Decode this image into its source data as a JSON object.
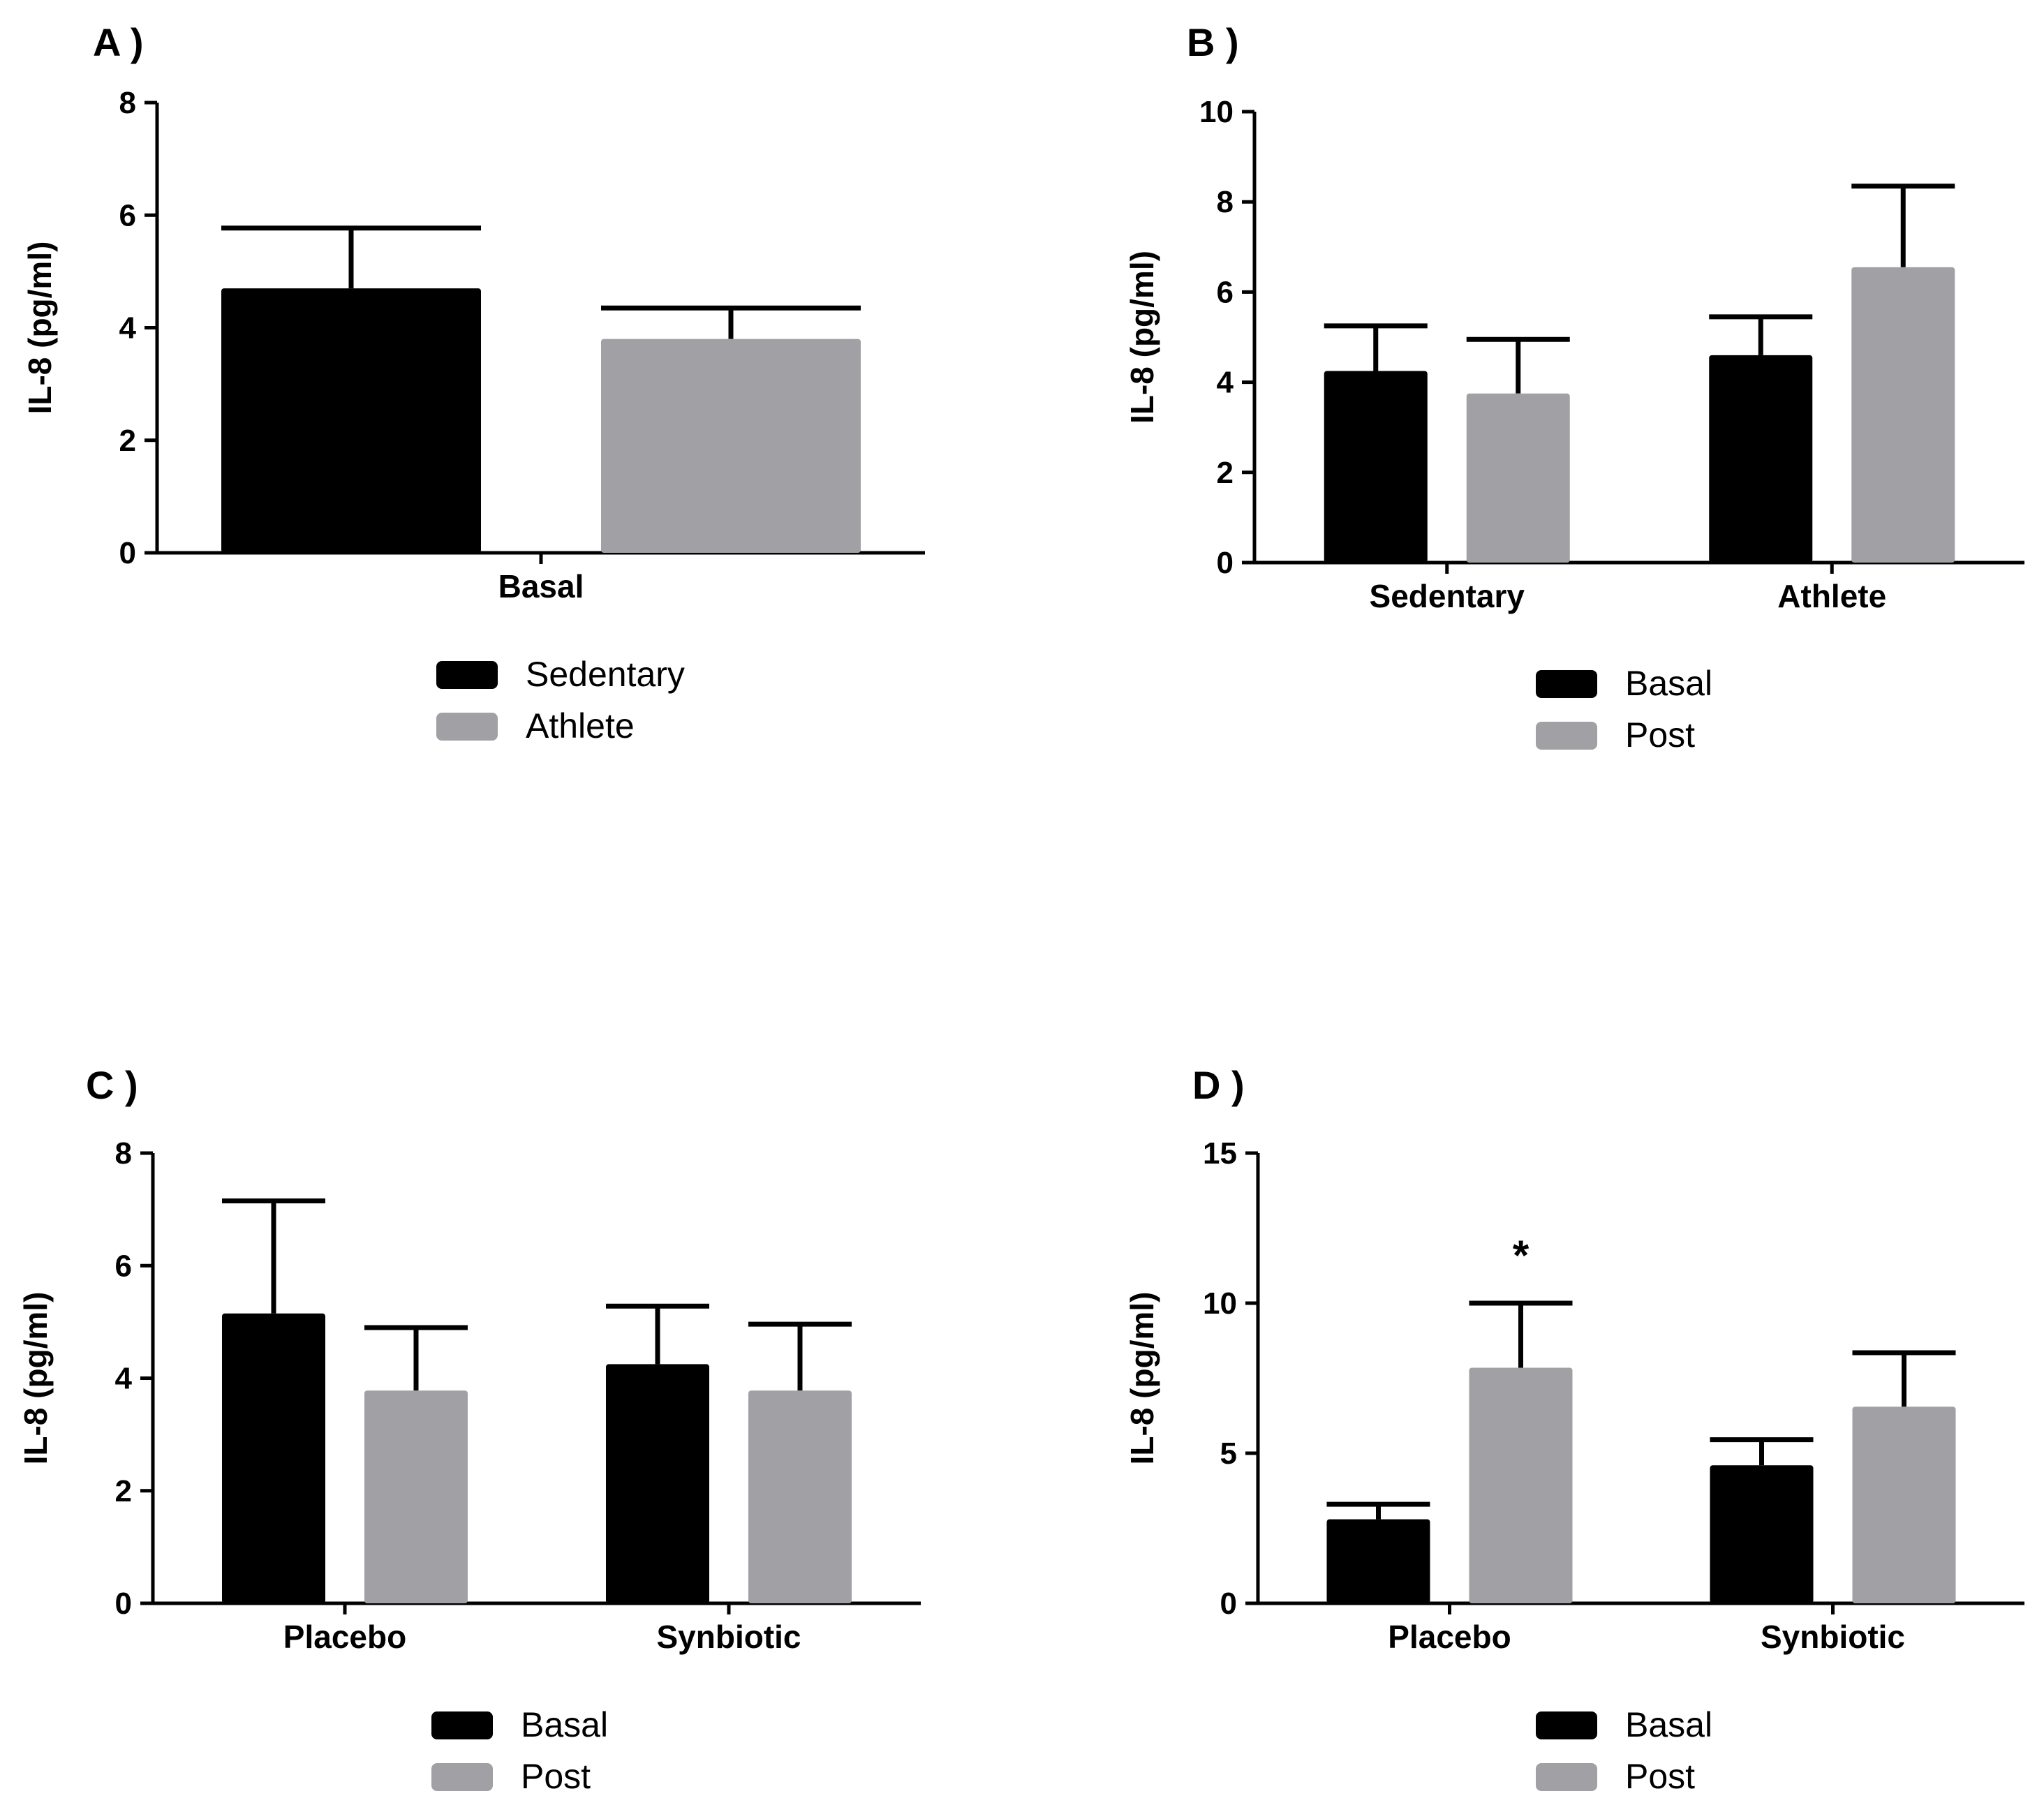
{
  "colors": {
    "basal": "#000000",
    "post": "#a1a1a5",
    "axis": "#000000"
  },
  "chart_data": [
    {
      "id": "A",
      "panel_label": "A )",
      "type": "bar",
      "ylabel": "IL-8 (pg/ml)",
      "ylim": [
        0,
        8
      ],
      "yticks": [
        0,
        2,
        4,
        6,
        8
      ],
      "categories": [
        "Basal"
      ],
      "series": [
        {
          "name": "Sedentary",
          "color_key": "basal",
          "values": [
            4.7
          ],
          "errors": [
            1.07
          ]
        },
        {
          "name": "Athlete",
          "color_key": "post",
          "values": [
            3.8
          ],
          "errors": [
            0.55
          ]
        }
      ],
      "significance": []
    },
    {
      "id": "B",
      "panel_label": "B )",
      "type": "bar",
      "ylabel": "IL-8 (pg/ml)",
      "ylim": [
        0,
        10
      ],
      "yticks": [
        0,
        2,
        4,
        6,
        8,
        10
      ],
      "categories": [
        "Sedentary",
        "Athlete"
      ],
      "series": [
        {
          "name": "Basal",
          "color_key": "basal",
          "values": [
            4.25,
            4.6
          ],
          "errors": [
            1.0,
            0.85
          ]
        },
        {
          "name": "Post",
          "color_key": "post",
          "values": [
            3.75,
            6.55
          ],
          "errors": [
            1.2,
            1.8
          ]
        }
      ],
      "significance": []
    },
    {
      "id": "C",
      "panel_label": "C )",
      "type": "bar",
      "ylabel": "IL-8 (pg/ml)",
      "ylim": [
        0,
        8
      ],
      "yticks": [
        0,
        2,
        4,
        6,
        8
      ],
      "categories": [
        "Placebo",
        "Synbiotic"
      ],
      "series": [
        {
          "name": "Basal",
          "color_key": "basal",
          "values": [
            5.15,
            4.25
          ],
          "errors": [
            2.0,
            1.03
          ]
        },
        {
          "name": "Post",
          "color_key": "post",
          "values": [
            3.78,
            3.78
          ],
          "errors": [
            1.12,
            1.18
          ]
        }
      ],
      "significance": []
    },
    {
      "id": "D",
      "panel_label": "D )",
      "type": "bar",
      "ylabel": "IL-8 (pg/ml)",
      "ylim": [
        0,
        15
      ],
      "yticks": [
        0,
        5,
        10,
        15
      ],
      "categories": [
        "Placebo",
        "Synbiotic"
      ],
      "series": [
        {
          "name": "Basal",
          "color_key": "basal",
          "values": [
            2.8,
            4.6
          ],
          "errors": [
            0.5,
            0.85
          ]
        },
        {
          "name": "Post",
          "color_key": "post",
          "values": [
            7.85,
            6.55
          ],
          "errors": [
            2.15,
            1.8
          ]
        }
      ],
      "significance": [
        {
          "category": 0,
          "series": 1,
          "label": "*"
        }
      ]
    }
  ]
}
